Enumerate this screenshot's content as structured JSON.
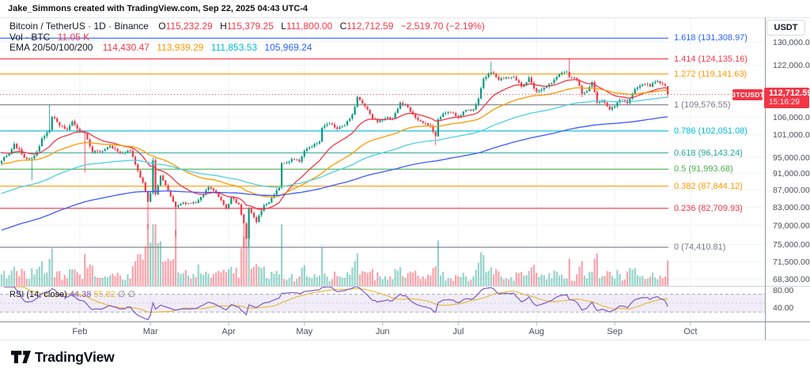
{
  "attribution": "Jake_Simmons created with TradingView.com, Sep 22, 2025 04:43 UTC-4",
  "header": {
    "title": "Bitcoin / TetherUS · 1D · Binance",
    "ohlc": [
      {
        "label": "O",
        "value": "115,232.29"
      },
      {
        "label": "H",
        "value": "115,379.25"
      },
      {
        "label": "L",
        "value": "111,800.00"
      },
      {
        "label": "C",
        "value": "112,712.59"
      }
    ],
    "change": "−2,519.70 (−2.19%)",
    "values_color": "#f23645",
    "volume": {
      "label": "Vol · BTC",
      "value": "11.05 K",
      "value_color": "#f23645"
    },
    "ema": {
      "label": "EMA 20/50/100/200",
      "values": [
        {
          "text": "114,430.47",
          "color": "#f23645"
        },
        {
          "text": "113,939.29",
          "color": "#ff9800"
        },
        {
          "text": "111,853.53",
          "color": "#00bcd4"
        },
        {
          "text": "105,969.24",
          "color": "#2962ff"
        }
      ]
    }
  },
  "rsi_legend": {
    "label": "RSI (14, close)",
    "value": "44.38",
    "value_color": "#7e57c2",
    "ma_value": "55.82",
    "ma_color": "#e8b93e",
    "placeholders": "∅  ∅",
    "placeholders_color": "#787b86"
  },
  "price_axis": {
    "currency_button": "USDT",
    "ticks": [
      {
        "label": "130,000.00",
        "value": 130000
      },
      {
        "label": "122,000.00",
        "value": 122000
      },
      {
        "label": "114,000.00",
        "value": 114000
      },
      {
        "label": "106,000.00",
        "value": 106000
      },
      {
        "label": "101,000.00",
        "value": 101000
      },
      {
        "label": "95,000.00",
        "value": 95000
      },
      {
        "label": "91,000.00",
        "value": 91000
      },
      {
        "label": "87,000.00",
        "value": 87000
      },
      {
        "label": "83,000.00",
        "value": 83000
      },
      {
        "label": "79,000.00",
        "value": 79000
      },
      {
        "label": "75,000.00",
        "value": 75000
      },
      {
        "label": "71,500.00",
        "value": 71500
      },
      {
        "label": "68,300.00",
        "value": 68300
      }
    ],
    "rsi_ticks": [
      {
        "label": "80.00",
        "value": 80
      },
      {
        "label": "40.00",
        "value": 40
      }
    ],
    "price_tag": {
      "symbol": "BTCUSDT",
      "price": "112,712.59",
      "countdown": "15:16:29",
      "color": "#f23645"
    }
  },
  "footer": {
    "logo_text": "TradingView"
  },
  "chart_data": {
    "type": "candlestick",
    "symbol": "BTCUSDT",
    "timeframe": "1D",
    "price_scale": "log",
    "current_price": 112712.59,
    "last_candle": {
      "open": 115232.29,
      "high": 115379.25,
      "low": 111800.0,
      "close": 112712.59
    },
    "indicators": {
      "ema_periods": [
        20,
        50,
        100,
        200
      ],
      "ema_last": [
        114430.47,
        113939.29,
        111853.53,
        105969.24
      ],
      "rsi_period": 14,
      "rsi_last": 44.38,
      "rsi_ma_last": 55.82,
      "volume_last": "11.05 K"
    },
    "months": [
      {
        "label": "Feb",
        "day": 31
      },
      {
        "label": "Mar",
        "day": 59
      },
      {
        "label": "Apr",
        "day": 90
      },
      {
        "label": "May",
        "day": 120
      },
      {
        "label": "Jun",
        "day": 151
      },
      {
        "label": "Jul",
        "day": 181
      },
      {
        "label": "Aug",
        "day": 212
      },
      {
        "label": "Sep",
        "day": 243
      },
      {
        "label": "Oct",
        "day": 273
      }
    ],
    "fib_levels": [
      {
        "label": "1.618 (131,308.97)",
        "price": 131308.97,
        "color": "#2962ff"
      },
      {
        "label": "1.414 (124,135.16)",
        "price": 124135.16,
        "color": "#f23645"
      },
      {
        "label": "1.272 (119,141.63)",
        "price": 119141.63,
        "color": "#ff9800"
      },
      {
        "label": "1 (109,576.55)",
        "price": 109576.55,
        "color": "#787b86"
      },
      {
        "label": "0.786 (102,051.08)",
        "price": 102051.08,
        "color": "#00bcd4"
      },
      {
        "label": "0.618 (96,143.24)",
        "price": 96143.24,
        "color": "#26a69a"
      },
      {
        "label": "0.5 (91,993.68)",
        "price": 91993.68,
        "color": "#4caf50"
      },
      {
        "label": "0.382 (87,844.12)",
        "price": 87844.12,
        "color": "#ff9800"
      },
      {
        "label": "0.236 (82,709.93)",
        "price": 82709.93,
        "color": "#f23645"
      },
      {
        "label": "0 (74,410.81)",
        "price": 74410.81,
        "color": "#787b86"
      }
    ],
    "seed": 7,
    "first_open": 93400,
    "anchors_day_close": [
      [
        0,
        94400
      ],
      [
        3,
        96100
      ],
      [
        5,
        98300
      ],
      [
        7,
        96900
      ],
      [
        9,
        94700
      ],
      [
        12,
        94500
      ],
      [
        14,
        96600
      ],
      [
        16,
        99800
      ],
      [
        19,
        102300
      ],
      [
        20,
        106100
      ],
      [
        23,
        103700
      ],
      [
        26,
        102100
      ],
      [
        28,
        104700
      ],
      [
        30,
        102400
      ],
      [
        33,
        101400
      ],
      [
        36,
        96600
      ],
      [
        40,
        96500
      ],
      [
        43,
        97800
      ],
      [
        47,
        96100
      ],
      [
        51,
        96600
      ],
      [
        54,
        91500
      ],
      [
        56,
        88600
      ],
      [
        58,
        84300
      ],
      [
        59,
        86000
      ],
      [
        60,
        94200
      ],
      [
        61,
        86000
      ],
      [
        63,
        90600
      ],
      [
        66,
        86800
      ],
      [
        69,
        82900
      ],
      [
        71,
        83700
      ],
      [
        74,
        84000
      ],
      [
        77,
        83800
      ],
      [
        82,
        87500
      ],
      [
        84,
        86900
      ],
      [
        87,
        84400
      ],
      [
        89,
        82500
      ],
      [
        91,
        85200
      ],
      [
        94,
        83500
      ],
      [
        96,
        79200
      ],
      [
        97,
        76300
      ],
      [
        98,
        82600
      ],
      [
        101,
        79600
      ],
      [
        104,
        83700
      ],
      [
        106,
        84000
      ],
      [
        110,
        87500
      ],
      [
        111,
        93400
      ],
      [
        113,
        93700
      ],
      [
        116,
        94700
      ],
      [
        118,
        94200
      ],
      [
        120,
        96500
      ],
      [
        123,
        97900
      ],
      [
        126,
        99300
      ],
      [
        127,
        103200
      ],
      [
        130,
        104100
      ],
      [
        133,
        102700
      ],
      [
        136,
        103500
      ],
      [
        139,
        106800
      ],
      [
        141,
        111700
      ],
      [
        144,
        109000
      ],
      [
        147,
        105700
      ],
      [
        149,
        104600
      ],
      [
        152,
        105800
      ],
      [
        155,
        105400
      ],
      [
        158,
        110200
      ],
      [
        161,
        108900
      ],
      [
        164,
        105500
      ],
      [
        167,
        104600
      ],
      [
        170,
        103300
      ],
      [
        172,
        100900
      ],
      [
        173,
        105600
      ],
      [
        176,
        107400
      ],
      [
        179,
        107300
      ],
      [
        181,
        105700
      ],
      [
        184,
        108200
      ],
      [
        187,
        108100
      ],
      [
        189,
        111300
      ],
      [
        191,
        117500
      ],
      [
        194,
        119800
      ],
      [
        197,
        117300
      ],
      [
        200,
        118000
      ],
      [
        203,
        117900
      ],
      [
        206,
        115100
      ],
      [
        209,
        117700
      ],
      [
        212,
        113400
      ],
      [
        215,
        114500
      ],
      [
        218,
        116500
      ],
      [
        221,
        118800
      ],
      [
        224,
        120200
      ],
      [
        225,
        118300
      ],
      [
        228,
        117400
      ],
      [
        230,
        112900
      ],
      [
        232,
        113400
      ],
      [
        234,
        116900
      ],
      [
        236,
        110100
      ],
      [
        238,
        111000
      ],
      [
        241,
        108400
      ],
      [
        243,
        109200
      ],
      [
        245,
        111000
      ],
      [
        248,
        110300
      ],
      [
        251,
        114300
      ],
      [
        254,
        116000
      ],
      [
        257,
        115400
      ],
      [
        260,
        117100
      ],
      [
        262,
        115700
      ],
      [
        263,
        115232
      ],
      [
        264,
        112712.59
      ]
    ],
    "spikes": [
      [
        12,
        "l",
        89256
      ],
      [
        19,
        "h",
        109588
      ],
      [
        33,
        "l",
        91200
      ],
      [
        58,
        "l",
        78200
      ],
      [
        60,
        "h",
        95000
      ],
      [
        69,
        "l",
        76600
      ],
      [
        96,
        "l",
        74410.81
      ],
      [
        98,
        "l",
        74600
      ],
      [
        141,
        "h",
        111980
      ],
      [
        172,
        "l",
        98200
      ],
      [
        194,
        "h",
        123218
      ],
      [
        225,
        "h",
        124474
      ],
      [
        230,
        "l",
        111900
      ]
    ],
    "volume_boosts": [
      [
        54,
        78,
        1.6
      ],
      [
        92,
        101,
        1.25
      ],
      [
        139,
        143,
        1.1
      ],
      [
        189,
        197,
        1.15
      ]
    ],
    "ema_seeds": [
      96500,
      93300,
      86000,
      77800
    ],
    "colors": {
      "up": "#089981",
      "down": "#f23645",
      "vol_up": "rgba(8,153,129,0.42)",
      "vol_down": "rgba(242,54,69,0.45)",
      "ema": [
        "#f23645",
        "#ff9800",
        "#4dd0e1",
        "#3d5afe"
      ],
      "rsi": "#7e57c2",
      "rsi_ma": "#e8b93e",
      "price_line": "#f23645",
      "grid": "#f0f2f7",
      "rsi_band_fill": "rgba(126,87,194,0.11)",
      "rsi_band_line": "#a8abb3"
    },
    "rsi_bands": [
      70,
      30
    ],
    "rsi_scale": [
      8,
      88
    ]
  }
}
